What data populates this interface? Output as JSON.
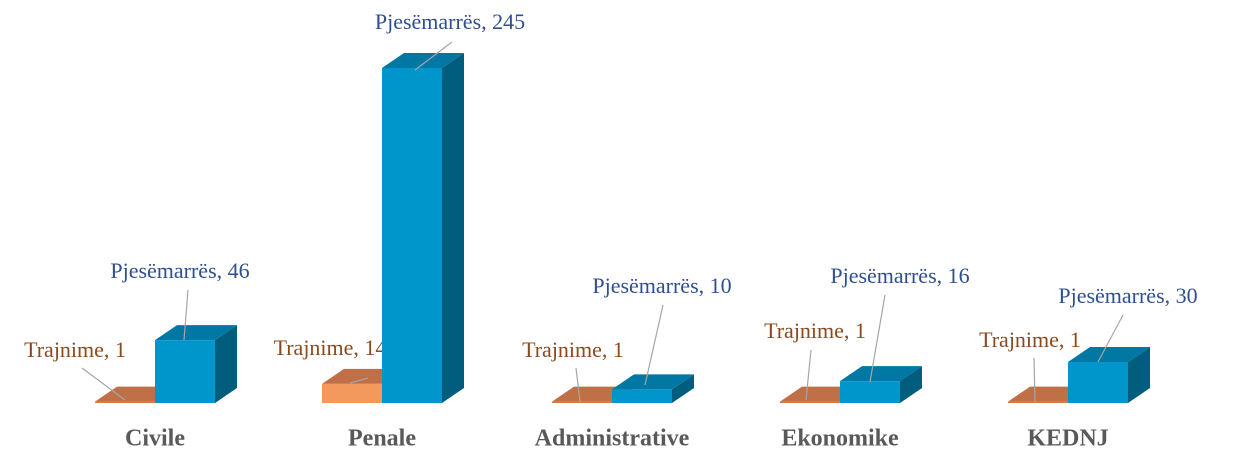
{
  "chart_data": {
    "type": "bar3d",
    "categories": [
      "Civile",
      "Penale",
      "Administrative",
      "Ekonomike",
      "KEDNJ"
    ],
    "series": [
      {
        "name": "Trajnime",
        "color": "#d07a4c",
        "values": [
          1,
          14,
          1,
          1,
          1
        ],
        "value_labels": [
          "Trajnime,  1",
          "Trajnime,  14",
          "Trajnime,  1",
          "Trajnime,  1",
          "Trajnime,  1"
        ]
      },
      {
        "name": "Pjesëmarrës",
        "color": "#0096cc",
        "values": [
          46,
          245,
          10,
          16,
          30
        ],
        "value_labels": [
          "Pjesëmarrës, 46",
          "Pjesëmarrës, 245",
          "Pjesëmarrës, 10",
          "Pjesëmarrës, 16",
          "Pjesëmarrës, 30"
        ]
      }
    ]
  }
}
